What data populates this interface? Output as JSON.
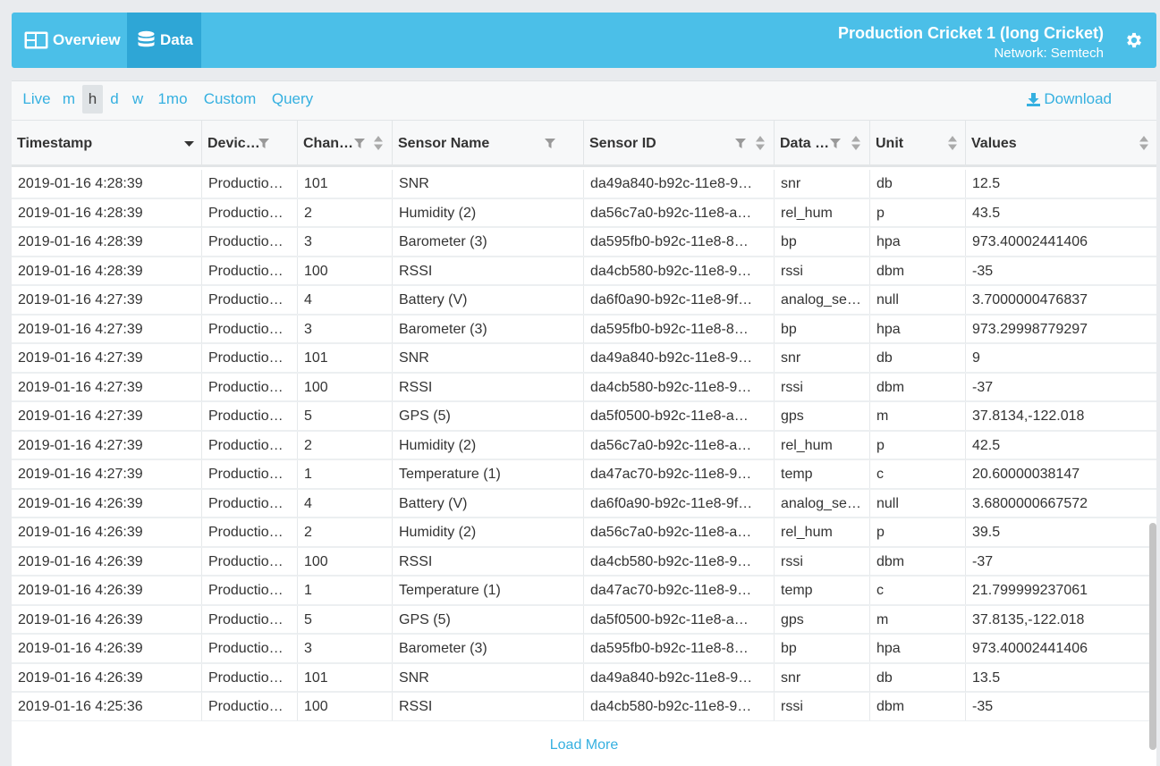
{
  "nav": {
    "overview_label": "Overview",
    "data_label": "Data"
  },
  "device": {
    "title": "Production Cricket 1 (long Cricket)",
    "network": "Network: Semtech"
  },
  "toolbar": {
    "ranges": [
      "Live",
      "m",
      "h",
      "d",
      "w",
      "1mo"
    ],
    "active_range": "h",
    "custom_label": "Custom",
    "query_label": "Query",
    "download_label": "Download"
  },
  "table": {
    "headers": {
      "timestamp": "Timestamp",
      "device": "Devic…",
      "channel": "Chan…",
      "sensor_name": "Sensor Name",
      "sensor_id": "Sensor ID",
      "data_type": "Data …",
      "unit": "Unit",
      "values": "Values"
    },
    "rows": [
      {
        "timestamp": "2019-01-16 4:28:39",
        "device": "Productio…",
        "channel": "101",
        "sensor_name": "SNR",
        "sensor_id": "da49a840-b92c-11e8-9…",
        "data_type": "snr",
        "unit": "db",
        "value": "12.5"
      },
      {
        "timestamp": "2019-01-16 4:28:39",
        "device": "Productio…",
        "channel": "2",
        "sensor_name": "Humidity (2)",
        "sensor_id": "da56c7a0-b92c-11e8-a…",
        "data_type": "rel_hum",
        "unit": "p",
        "value": "43.5"
      },
      {
        "timestamp": "2019-01-16 4:28:39",
        "device": "Productio…",
        "channel": "3",
        "sensor_name": "Barometer (3)",
        "sensor_id": "da595fb0-b92c-11e8-8…",
        "data_type": "bp",
        "unit": "hpa",
        "value": "973.40002441406"
      },
      {
        "timestamp": "2019-01-16 4:28:39",
        "device": "Productio…",
        "channel": "100",
        "sensor_name": "RSSI",
        "sensor_id": "da4cb580-b92c-11e8-9…",
        "data_type": "rssi",
        "unit": "dbm",
        "value": "-35"
      },
      {
        "timestamp": "2019-01-16 4:27:39",
        "device": "Productio…",
        "channel": "4",
        "sensor_name": "Battery (V)",
        "sensor_id": "da6f0a90-b92c-11e8-9f…",
        "data_type": "analog_se…",
        "unit": "null",
        "value": "3.7000000476837"
      },
      {
        "timestamp": "2019-01-16 4:27:39",
        "device": "Productio…",
        "channel": "3",
        "sensor_name": "Barometer (3)",
        "sensor_id": "da595fb0-b92c-11e8-8…",
        "data_type": "bp",
        "unit": "hpa",
        "value": "973.29998779297"
      },
      {
        "timestamp": "2019-01-16 4:27:39",
        "device": "Productio…",
        "channel": "101",
        "sensor_name": "SNR",
        "sensor_id": "da49a840-b92c-11e8-9…",
        "data_type": "snr",
        "unit": "db",
        "value": "9"
      },
      {
        "timestamp": "2019-01-16 4:27:39",
        "device": "Productio…",
        "channel": "100",
        "sensor_name": "RSSI",
        "sensor_id": "da4cb580-b92c-11e8-9…",
        "data_type": "rssi",
        "unit": "dbm",
        "value": "-37"
      },
      {
        "timestamp": "2019-01-16 4:27:39",
        "device": "Productio…",
        "channel": "5",
        "sensor_name": "GPS (5)",
        "sensor_id": "da5f0500-b92c-11e8-a…",
        "data_type": "gps",
        "unit": "m",
        "value": "37.8134,-122.018"
      },
      {
        "timestamp": "2019-01-16 4:27:39",
        "device": "Productio…",
        "channel": "2",
        "sensor_name": "Humidity (2)",
        "sensor_id": "da56c7a0-b92c-11e8-a…",
        "data_type": "rel_hum",
        "unit": "p",
        "value": "42.5"
      },
      {
        "timestamp": "2019-01-16 4:27:39",
        "device": "Productio…",
        "channel": "1",
        "sensor_name": "Temperature (1)",
        "sensor_id": "da47ac70-b92c-11e8-9…",
        "data_type": "temp",
        "unit": "c",
        "value": "20.60000038147"
      },
      {
        "timestamp": "2019-01-16 4:26:39",
        "device": "Productio…",
        "channel": "4",
        "sensor_name": "Battery (V)",
        "sensor_id": "da6f0a90-b92c-11e8-9f…",
        "data_type": "analog_se…",
        "unit": "null",
        "value": "3.6800000667572"
      },
      {
        "timestamp": "2019-01-16 4:26:39",
        "device": "Productio…",
        "channel": "2",
        "sensor_name": "Humidity (2)",
        "sensor_id": "da56c7a0-b92c-11e8-a…",
        "data_type": "rel_hum",
        "unit": "p",
        "value": "39.5"
      },
      {
        "timestamp": "2019-01-16 4:26:39",
        "device": "Productio…",
        "channel": "100",
        "sensor_name": "RSSI",
        "sensor_id": "da4cb580-b92c-11e8-9…",
        "data_type": "rssi",
        "unit": "dbm",
        "value": "-37"
      },
      {
        "timestamp": "2019-01-16 4:26:39",
        "device": "Productio…",
        "channel": "1",
        "sensor_name": "Temperature (1)",
        "sensor_id": "da47ac70-b92c-11e8-9…",
        "data_type": "temp",
        "unit": "c",
        "value": "21.799999237061"
      },
      {
        "timestamp": "2019-01-16 4:26:39",
        "device": "Productio…",
        "channel": "5",
        "sensor_name": "GPS (5)",
        "sensor_id": "da5f0500-b92c-11e8-a…",
        "data_type": "gps",
        "unit": "m",
        "value": "37.8135,-122.018"
      },
      {
        "timestamp": "2019-01-16 4:26:39",
        "device": "Productio…",
        "channel": "3",
        "sensor_name": "Barometer (3)",
        "sensor_id": "da595fb0-b92c-11e8-8…",
        "data_type": "bp",
        "unit": "hpa",
        "value": "973.40002441406"
      },
      {
        "timestamp": "2019-01-16 4:26:39",
        "device": "Productio…",
        "channel": "101",
        "sensor_name": "SNR",
        "sensor_id": "da49a840-b92c-11e8-9…",
        "data_type": "snr",
        "unit": "db",
        "value": "13.5"
      },
      {
        "timestamp": "2019-01-16 4:25:36",
        "device": "Productio…",
        "channel": "100",
        "sensor_name": "RSSI",
        "sensor_id": "da4cb580-b92c-11e8-9…",
        "data_type": "rssi",
        "unit": "dbm",
        "value": "-35"
      }
    ]
  },
  "load_more_label": "Load More",
  "colors": {
    "accent": "#4bbfe8",
    "accent_dark": "#2ea6d6",
    "link": "#35b0e0"
  },
  "icons": {
    "overview": "dashboard-icon",
    "data": "database-icon",
    "settings": "gear-icon",
    "download": "download-icon",
    "filter": "filter-icon",
    "sort": "sort-icon"
  }
}
